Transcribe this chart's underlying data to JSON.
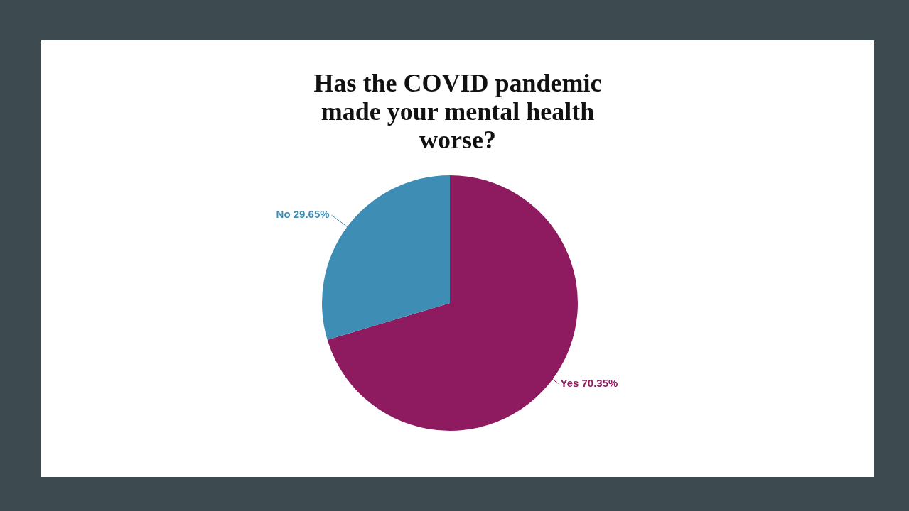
{
  "chart_data": {
    "type": "pie",
    "title": "Has the COVID pandemic made your mental health worse?",
    "categories": [
      "Yes",
      "No"
    ],
    "values": [
      70.35,
      29.65
    ],
    "colors": [
      "#8e1a60",
      "#3d8db5"
    ],
    "value_labels": [
      "70.35%",
      "29.65%"
    ],
    "legend": false
  }
}
